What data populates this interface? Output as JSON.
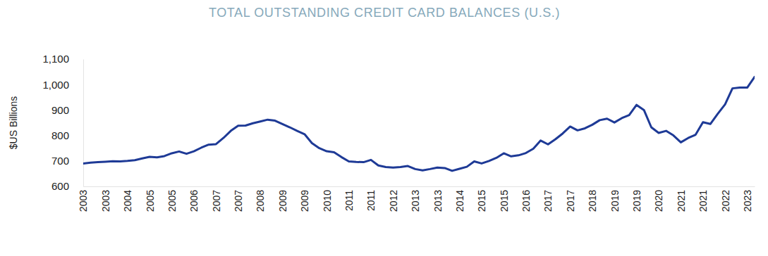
{
  "chart_data": {
    "type": "line",
    "title": "TOTAL OUTSTANDING CREDIT CARD BALANCES (U.S.)",
    "y_label": "$US Billions",
    "color": "#1e3a96",
    "grid": false,
    "ylim": [
      600,
      1100
    ],
    "yticks": [
      600,
      700,
      800,
      900,
      {
        "value": 1000,
        "label": "1,000"
      },
      {
        "value": 1100,
        "label": "1,100"
      }
    ],
    "categories": [
      "2003",
      null,
      null,
      "2003",
      null,
      null,
      "2004",
      null,
      null,
      "2005",
      null,
      null,
      "2005",
      null,
      null,
      "2006",
      null,
      null,
      "2007",
      null,
      null,
      "2007",
      null,
      null,
      "2008",
      null,
      null,
      "2009",
      null,
      null,
      "2009",
      null,
      null,
      "2010",
      null,
      null,
      "2011",
      null,
      null,
      "2011",
      null,
      null,
      "2012",
      null,
      null,
      "2013",
      null,
      null,
      "2013",
      null,
      null,
      "2014",
      null,
      null,
      "2015",
      null,
      null,
      "2015",
      null,
      null,
      "2016",
      null,
      null,
      "2017",
      null,
      null,
      "2017",
      null,
      null,
      "2018",
      null,
      null,
      "2019",
      null,
      null,
      "2019",
      null,
      null,
      "2020",
      null,
      null,
      "2021",
      null,
      null,
      "2021",
      null,
      null,
      "2022",
      null,
      null,
      "2023",
      null
    ],
    "values": [
      690,
      693,
      695,
      697,
      699,
      698,
      700,
      703,
      710,
      716,
      714,
      719,
      730,
      737,
      728,
      738,
      752,
      764,
      766,
      790,
      818,
      838,
      839,
      848,
      855,
      862,
      858,
      845,
      832,
      818,
      805,
      770,
      750,
      738,
      734,
      715,
      698,
      696,
      695,
      704,
      682,
      676,
      674,
      676,
      680,
      668,
      663,
      668,
      674,
      672,
      661,
      669,
      677,
      698,
      690,
      700,
      712,
      730,
      718,
      722,
      731,
      748,
      780,
      765,
      785,
      808,
      835,
      820,
      828,
      842,
      860,
      866,
      851,
      868,
      880,
      920,
      900,
      832,
      810,
      818,
      800,
      773,
      790,
      803,
      852,
      845,
      885,
      922,
      985,
      988,
      988,
      1030
    ]
  }
}
